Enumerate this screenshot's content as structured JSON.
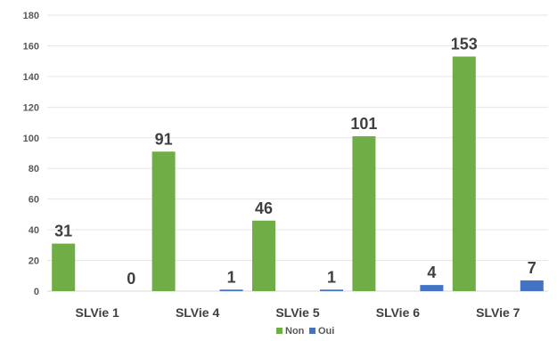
{
  "chart_data": {
    "type": "bar",
    "categories": [
      "SLVie 1",
      "SLVie 4",
      "SLVie 5",
      "SLVie 6",
      "SLVie 7"
    ],
    "series": [
      {
        "name": "Non",
        "values": [
          31,
          91,
          46,
          101,
          153
        ],
        "color": "#70AD47"
      },
      {
        "name": "Oui",
        "values": [
          0,
          1,
          1,
          4,
          7
        ],
        "color": "#4472C4"
      }
    ],
    "ylim": [
      0,
      180
    ],
    "yticks": [
      0,
      20,
      40,
      60,
      80,
      100,
      120,
      140,
      160,
      180
    ],
    "grid": true,
    "legend": "bottom-center",
    "data_labels": true
  }
}
